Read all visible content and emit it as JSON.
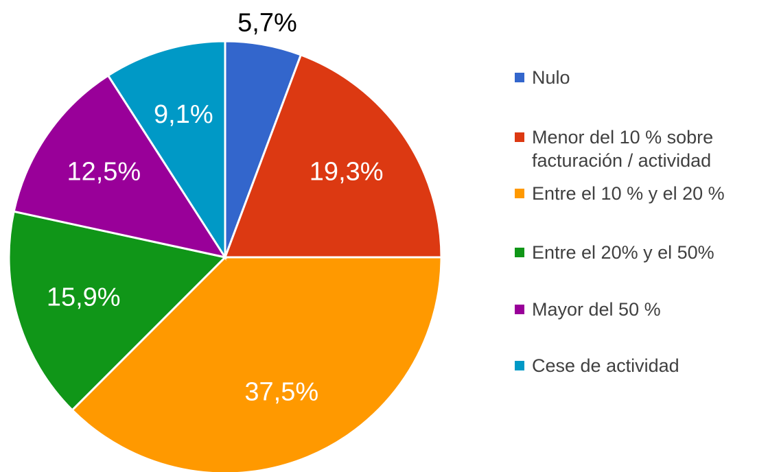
{
  "chart_data": {
    "type": "pie",
    "categories": [
      "Nulo",
      "Menor del 10 % sobre facturación / actividad",
      "Entre el 10 % y el 20 %",
      "Entre el 20% y el 50%",
      "Mayor del 50 %",
      "Cese de actividad"
    ],
    "values": [
      5.7,
      19.3,
      37.5,
      15.9,
      12.5,
      9.1
    ],
    "value_labels": [
      "5,7%",
      "19,3%",
      "37,5%",
      "15,9%",
      "12,5%",
      "9,1%"
    ],
    "colors": [
      "#3366cc",
      "#dc3912",
      "#ff9900",
      "#109618",
      "#990099",
      "#0099c6"
    ],
    "legend": "right"
  }
}
